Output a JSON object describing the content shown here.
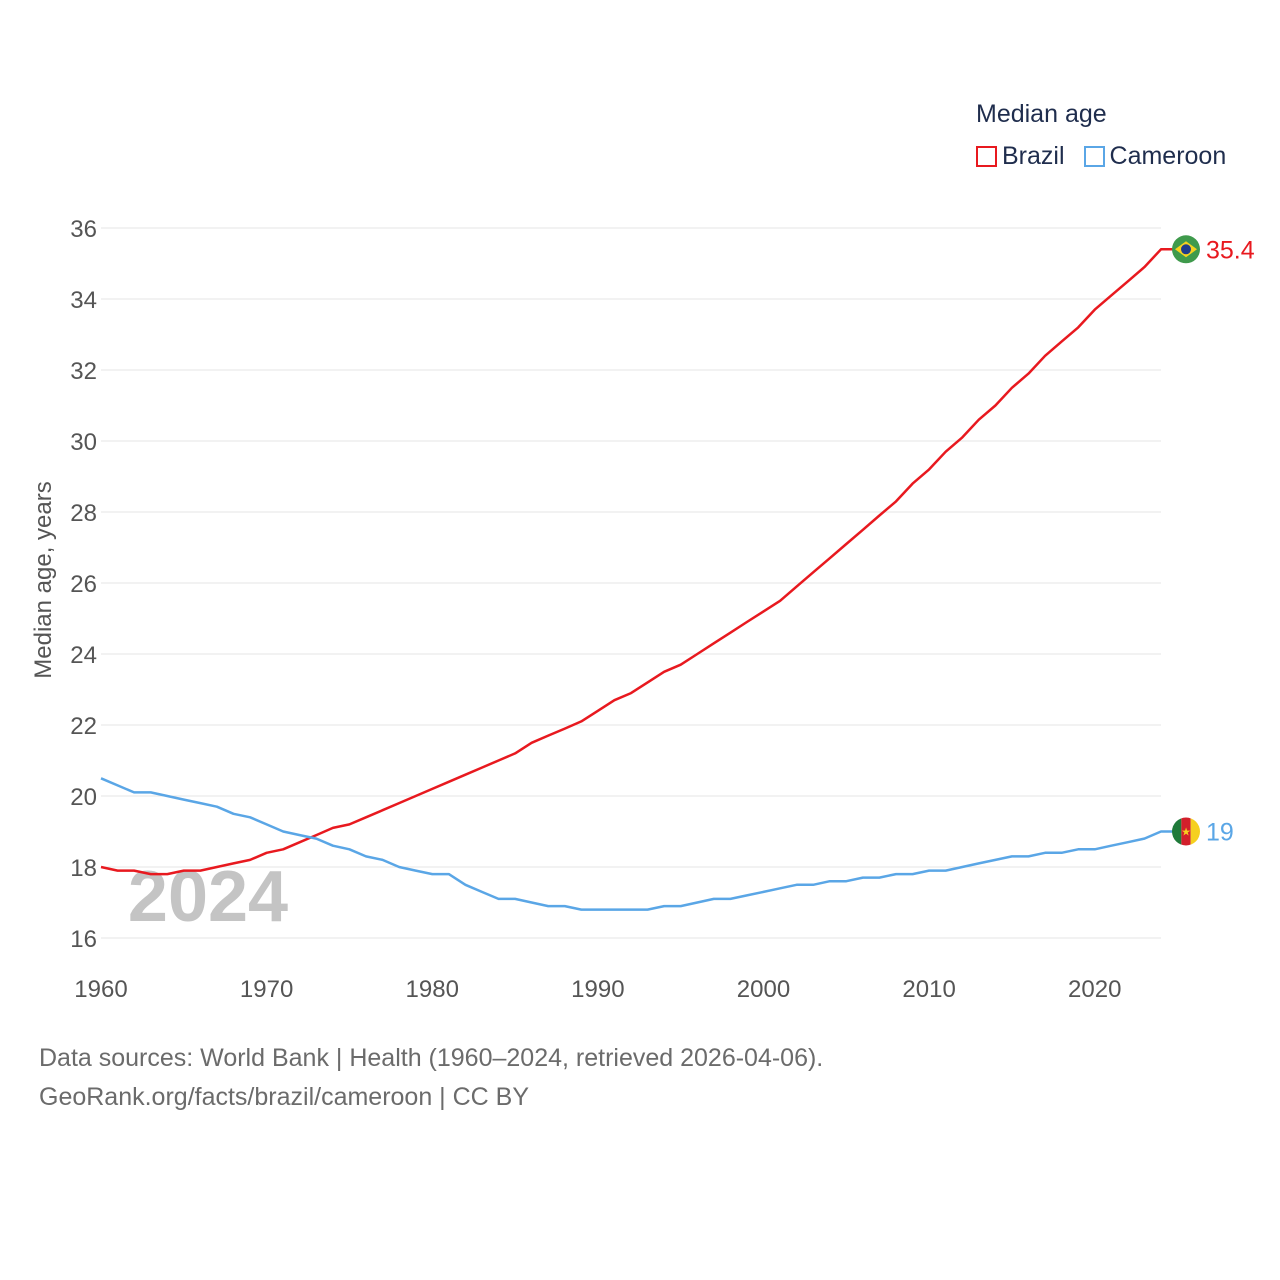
{
  "legend": {
    "title": "Median age",
    "items": [
      {
        "label": "Brazil",
        "color": "#e8191f"
      },
      {
        "label": "Cameroon",
        "color": "#5aa6e6"
      }
    ]
  },
  "footer": {
    "line1": "Data sources: World Bank | Health (1960–2024, retrieved 2026-04-06).",
    "line2": "GeoRank.org/facts/brazil/cameroon | CC BY"
  },
  "chart_data": {
    "type": "line",
    "title": "Median age",
    "ylabel": "Median age, years",
    "xlabel": "",
    "watermark_year": "2024",
    "xlim": [
      1960,
      2024
    ],
    "ylim": [
      16,
      36
    ],
    "xticks": [
      1960,
      1970,
      1980,
      1990,
      2000,
      2010,
      2020
    ],
    "yticks": [
      16,
      18,
      20,
      22,
      24,
      26,
      28,
      30,
      32,
      34,
      36
    ],
    "x": [
      1960,
      1961,
      1962,
      1963,
      1964,
      1965,
      1966,
      1967,
      1968,
      1969,
      1970,
      1971,
      1972,
      1973,
      1974,
      1975,
      1976,
      1977,
      1978,
      1979,
      1980,
      1981,
      1982,
      1983,
      1984,
      1985,
      1986,
      1987,
      1988,
      1989,
      1990,
      1991,
      1992,
      1993,
      1994,
      1995,
      1996,
      1997,
      1998,
      1999,
      2000,
      2001,
      2002,
      2003,
      2004,
      2005,
      2006,
      2007,
      2008,
      2009,
      2010,
      2011,
      2012,
      2013,
      2014,
      2015,
      2016,
      2017,
      2018,
      2019,
      2020,
      2021,
      2022,
      2023,
      2024
    ],
    "series": [
      {
        "name": "Brazil",
        "color": "#e8191f",
        "end_label": "35.4",
        "values": [
          18.0,
          17.9,
          17.9,
          17.8,
          17.8,
          17.9,
          17.9,
          18.0,
          18.1,
          18.2,
          18.4,
          18.5,
          18.7,
          18.9,
          19.1,
          19.2,
          19.4,
          19.6,
          19.8,
          20.0,
          20.2,
          20.4,
          20.6,
          20.8,
          21.0,
          21.2,
          21.5,
          21.7,
          21.9,
          22.1,
          22.4,
          22.7,
          22.9,
          23.2,
          23.5,
          23.7,
          24.0,
          24.3,
          24.6,
          24.9,
          25.2,
          25.5,
          25.9,
          26.3,
          26.7,
          27.1,
          27.5,
          27.9,
          28.3,
          28.8,
          29.2,
          29.7,
          30.1,
          30.6,
          31.0,
          31.5,
          31.9,
          32.4,
          32.8,
          33.2,
          33.7,
          34.1,
          34.5,
          34.9,
          35.4
        ]
      },
      {
        "name": "Cameroon",
        "color": "#5aa6e6",
        "end_label": "19",
        "values": [
          20.5,
          20.3,
          20.1,
          20.1,
          20.0,
          19.9,
          19.8,
          19.7,
          19.5,
          19.4,
          19.2,
          19.0,
          18.9,
          18.8,
          18.6,
          18.5,
          18.3,
          18.2,
          18.0,
          17.9,
          17.8,
          17.8,
          17.5,
          17.3,
          17.1,
          17.1,
          17.0,
          16.9,
          16.9,
          16.8,
          16.8,
          16.8,
          16.8,
          16.8,
          16.9,
          16.9,
          17.0,
          17.1,
          17.1,
          17.2,
          17.3,
          17.4,
          17.5,
          17.5,
          17.6,
          17.6,
          17.7,
          17.7,
          17.8,
          17.8,
          17.9,
          17.9,
          18.0,
          18.1,
          18.2,
          18.3,
          18.3,
          18.4,
          18.4,
          18.5,
          18.5,
          18.6,
          18.7,
          18.8,
          19.0
        ]
      }
    ]
  }
}
